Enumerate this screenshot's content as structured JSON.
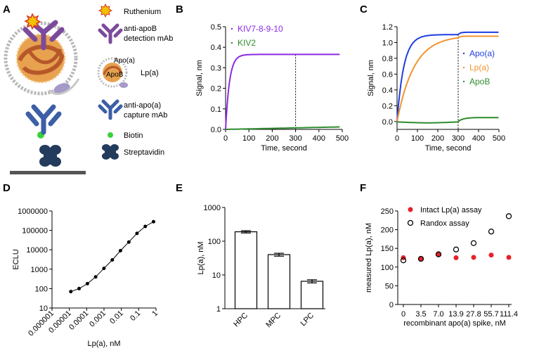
{
  "panel_letters": [
    "A",
    "B",
    "C",
    "D",
    "E",
    "F"
  ],
  "schematic": {
    "legend": {
      "ruthenium": "Ruthenium",
      "detection": "anti-apoB\ndetection mAb",
      "apoa": "Apo(a)",
      "apob": "ApoB",
      "lpa": "Lp(a)",
      "capture": "anti-apo(a)\ncapture mAb",
      "biotin": "Biotin",
      "streptavidin": "Streptavidin"
    },
    "colors": {
      "purple": "#7b4a9c",
      "blue": "#3c5fa6",
      "orange": "#e7a14f",
      "dark_orange": "#b6582a",
      "navy": "#233b5c",
      "biotin": "#3ad13a",
      "ruthenium": "#d9362b"
    }
  },
  "chart_data": [
    {
      "panel": "B",
      "type": "line",
      "xlabel": "Time, second",
      "ylabel": "Signal, nm",
      "xlim": [
        0,
        500
      ],
      "ylim": [
        0,
        0.5
      ],
      "xticks": [
        0,
        100,
        200,
        300,
        400,
        500
      ],
      "yticks": [
        0.0,
        0.1,
        0.2,
        0.3,
        0.4,
        0.5
      ],
      "ytick_labels": [
        "0.0",
        "0.1",
        "0.2",
        "0.3",
        "0.4",
        "0.5"
      ],
      "annotation": {
        "type": "vline",
        "x": 300
      },
      "series": [
        {
          "name": "KIV7-8-9-10",
          "color": "#8a2be2",
          "model": "assoc",
          "plateau": 0.365,
          "k": 0.06,
          "t_end": 490
        },
        {
          "name": "KIV2",
          "color": "#2e8b2e",
          "model": "linear",
          "y0": 0.0,
          "y1": 0.012,
          "t_end": 490
        }
      ]
    },
    {
      "panel": "C",
      "type": "line",
      "xlabel": "Time, second",
      "ylabel": "Signal, nm",
      "xlim": [
        0,
        500
      ],
      "ylim": [
        -0.1,
        1.2
      ],
      "xticks": [
        0,
        100,
        200,
        300,
        400,
        500
      ],
      "yticks": [
        0.0,
        0.2,
        0.4,
        0.6,
        0.8,
        1.0,
        1.2
      ],
      "ytick_labels": [
        "0.0",
        "0.2",
        "0.4",
        "0.6",
        "0.8",
        "1.0",
        "1.2"
      ],
      "annotation": {
        "type": "vline",
        "x": 300
      },
      "series": [
        {
          "name": "Apo(a)",
          "color": "#1f3ee0",
          "model": "assoc2",
          "plateau": 1.1,
          "k": 0.03,
          "a2": 0.03,
          "t_end": 500
        },
        {
          "name": "Lp(a)",
          "color": "#f0932f",
          "model": "assoc2",
          "plateau": 1.09,
          "k": 0.012,
          "a2": 0.02,
          "t_end": 500
        },
        {
          "name": "ApoB",
          "color": "#2e8b2e",
          "model": "apob",
          "t_end": 500
        }
      ]
    },
    {
      "panel": "D",
      "type": "line",
      "xscale": "log",
      "yscale": "log",
      "xlabel": "Lp(a), nM",
      "ylabel": "ECLU",
      "xlim": [
        1e-06,
        1
      ],
      "ylim": [
        10,
        1000000
      ],
      "xtick_labels": [
        "0.000001",
        "0.00001",
        "0.0001",
        "0.001",
        "0.01",
        "0.1",
        "1"
      ],
      "ytick_labels": [
        "10",
        "100",
        "1000",
        "10000",
        "100000",
        "1000000"
      ],
      "series": [
        {
          "name": "ECLU",
          "color": "#000000",
          "x": [
            1.22e-05,
            3.66e-05,
            0.00011,
            0.00033,
            0.00099,
            0.003,
            0.0089,
            0.027,
            0.08,
            0.24,
            0.72
          ],
          "y": [
            70,
            100,
            180,
            400,
            1100,
            3000,
            9000,
            25000,
            70000,
            160000,
            280000
          ]
        }
      ]
    },
    {
      "panel": "E",
      "type": "bar",
      "yscale": "log",
      "ylabel": "Lp(a), nM",
      "ylim": [
        1,
        1000
      ],
      "ytick_labels": [
        "1",
        "10",
        "100",
        "1000"
      ],
      "categories": [
        "HPC",
        "MPC",
        "LPC"
      ],
      "values": [
        190,
        40,
        6.5
      ],
      "errors": [
        15,
        4,
        0.7
      ]
    },
    {
      "panel": "F",
      "type": "scatter",
      "xlabel": "recombinant apo(a) spike, nM",
      "ylabel": "measured Lp(a), nM",
      "ylim": [
        0,
        250
      ],
      "yticks": [
        0,
        50,
        100,
        150,
        200,
        250
      ],
      "categories": [
        "0",
        "3.5",
        "7.0",
        "13.9",
        "27.8",
        "55.7",
        "111.4"
      ],
      "series": [
        {
          "name": "Intact Lp(a) assay",
          "marker": "filled",
          "color": "#e8202a",
          "values": [
            125,
            122,
            135,
            125,
            126,
            132,
            126
          ]
        },
        {
          "name": "Randox assay",
          "marker": "open",
          "color": "#000000",
          "values": [
            118,
            122,
            134,
            147,
            164,
            195,
            236
          ]
        }
      ]
    }
  ]
}
